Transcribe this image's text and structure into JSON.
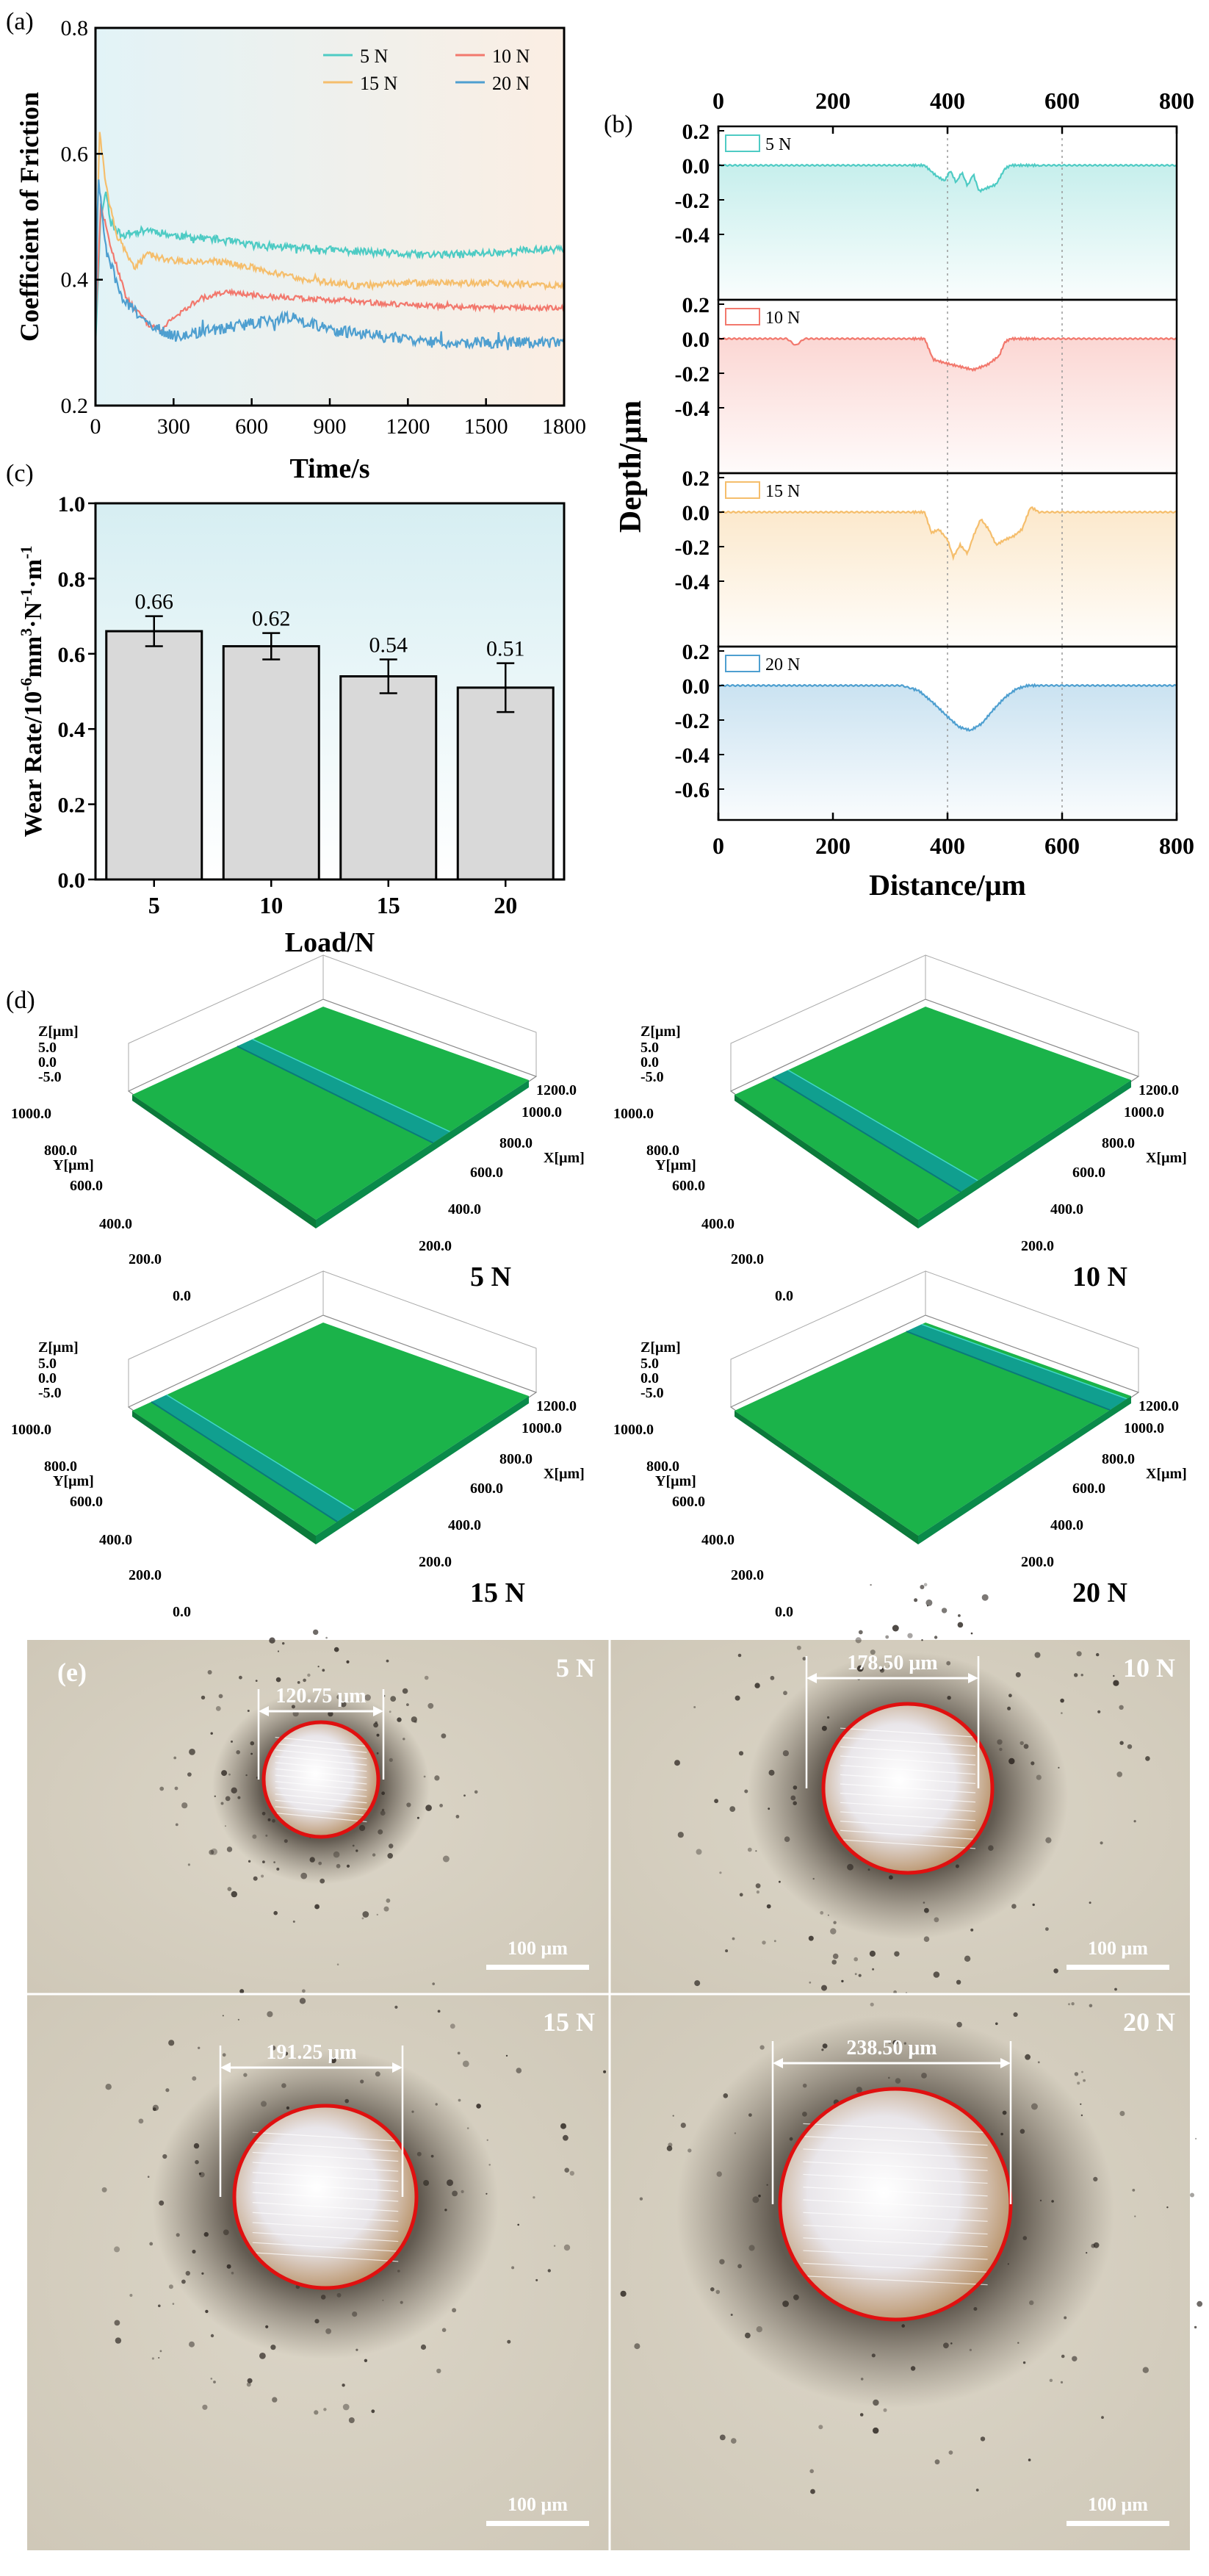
{
  "colors": {
    "n5": "#4ecbc4",
    "n10": "#f2786d",
    "n15": "#f5be6c",
    "n20": "#4e9fd0",
    "bar": "#d9d9d9",
    "circle": "#e01010",
    "bgA_left": "#e2f3f7",
    "bgA_right": "#fbeee3",
    "bgC_top": "#d6eef2",
    "surface": "#1bb34a",
    "groove": "#0e9b9b",
    "micro_bg": "#d8d2c4"
  },
  "chart_data": [
    {
      "id": "a",
      "panel_label": "(a)",
      "type": "line",
      "title": "",
      "xlabel": "Time/s",
      "ylabel": "Coefficient of Friction",
      "xlim": [
        0,
        1800
      ],
      "ylim": [
        0.2,
        0.8
      ],
      "xticks": [
        0,
        300,
        600,
        900,
        1200,
        1500,
        1800
      ],
      "yticks": [
        0.2,
        0.4,
        0.6,
        0.8
      ],
      "ytick_labels": [
        "0.2",
        "0.4",
        "0.6",
        "0.8"
      ],
      "legend": "top-right, two columns",
      "series": [
        {
          "name": "5 N",
          "color_key": "n5",
          "noise": 0.006,
          "points": [
            [
              0,
              0.3
            ],
            [
              20,
              0.5
            ],
            [
              40,
              0.54
            ],
            [
              60,
              0.49
            ],
            [
              100,
              0.47
            ],
            [
              200,
              0.48
            ],
            [
              300,
              0.47
            ],
            [
              450,
              0.465
            ],
            [
              600,
              0.455
            ],
            [
              800,
              0.45
            ],
            [
              1000,
              0.445
            ],
            [
              1200,
              0.44
            ],
            [
              1400,
              0.44
            ],
            [
              1600,
              0.445
            ],
            [
              1800,
              0.45
            ]
          ]
        },
        {
          "name": "10 N",
          "color_key": "n10",
          "noise": 0.004,
          "points": [
            [
              0,
              0.32
            ],
            [
              20,
              0.52
            ],
            [
              60,
              0.45
            ],
            [
              120,
              0.37
            ],
            [
              200,
              0.33
            ],
            [
              250,
              0.32
            ],
            [
              300,
              0.34
            ],
            [
              400,
              0.37
            ],
            [
              500,
              0.38
            ],
            [
              600,
              0.375
            ],
            [
              800,
              0.37
            ],
            [
              1000,
              0.365
            ],
            [
              1200,
              0.36
            ],
            [
              1500,
              0.355
            ],
            [
              1800,
              0.355
            ]
          ]
        },
        {
          "name": "15 N",
          "color_key": "n15",
          "noise": 0.005,
          "points": [
            [
              0,
              0.33
            ],
            [
              15,
              0.64
            ],
            [
              40,
              0.55
            ],
            [
              80,
              0.47
            ],
            [
              150,
              0.42
            ],
            [
              200,
              0.44
            ],
            [
              300,
              0.43
            ],
            [
              450,
              0.43
            ],
            [
              600,
              0.42
            ],
            [
              800,
              0.4
            ],
            [
              1000,
              0.39
            ],
            [
              1200,
              0.395
            ],
            [
              1500,
              0.395
            ],
            [
              1800,
              0.39
            ]
          ]
        },
        {
          "name": "20 N",
          "color_key": "n20",
          "noise": 0.009,
          "points": [
            [
              0,
              0.3
            ],
            [
              10,
              0.56
            ],
            [
              40,
              0.45
            ],
            [
              100,
              0.37
            ],
            [
              200,
              0.33
            ],
            [
              300,
              0.31
            ],
            [
              450,
              0.32
            ],
            [
              600,
              0.33
            ],
            [
              750,
              0.34
            ],
            [
              900,
              0.32
            ],
            [
              1100,
              0.31
            ],
            [
              1300,
              0.3
            ],
            [
              1500,
              0.3
            ],
            [
              1800,
              0.3
            ]
          ]
        }
      ]
    },
    {
      "id": "b",
      "panel_label": "(b)",
      "type": "line",
      "title": "",
      "xlabel": "Distance/μm",
      "ylabel": "Depth/μm",
      "xlim": [
        0,
        800
      ],
      "xticks": [
        0,
        200,
        400,
        600,
        800
      ],
      "ylim": [
        -0.6,
        0.2
      ],
      "yticks_per_panel": [
        "0.2",
        "0.0",
        "-0.2",
        "-0.4"
      ],
      "yticks_bottom": [
        "0.2",
        "0.0",
        "-0.2",
        "-0.4",
        "-0.6"
      ],
      "series": [
        {
          "name": "5 N",
          "color_key": "n5",
          "points": [
            [
              0,
              0.0
            ],
            [
              360,
              0.0
            ],
            [
              380,
              -0.06
            ],
            [
              395,
              -0.09
            ],
            [
              405,
              -0.03
            ],
            [
              415,
              -0.1
            ],
            [
              425,
              -0.04
            ],
            [
              435,
              -0.12
            ],
            [
              445,
              -0.05
            ],
            [
              455,
              -0.15
            ],
            [
              470,
              -0.13
            ],
            [
              485,
              -0.11
            ],
            [
              500,
              -0.02
            ],
            [
              510,
              0.0
            ],
            [
              800,
              0.0
            ]
          ]
        },
        {
          "name": "10 N",
          "color_key": "n10",
          "points": [
            [
              0,
              0.0
            ],
            [
              120,
              0.0
            ],
            [
              135,
              -0.04
            ],
            [
              150,
              0.0
            ],
            [
              360,
              0.0
            ],
            [
              375,
              -0.12
            ],
            [
              395,
              -0.14
            ],
            [
              420,
              -0.16
            ],
            [
              445,
              -0.18
            ],
            [
              470,
              -0.15
            ],
            [
              490,
              -0.1
            ],
            [
              500,
              -0.02
            ],
            [
              510,
              0.0
            ],
            [
              800,
              0.0
            ]
          ]
        },
        {
          "name": "15 N",
          "color_key": "n15",
          "points": [
            [
              0,
              0.0
            ],
            [
              360,
              0.0
            ],
            [
              372,
              -0.12
            ],
            [
              385,
              -0.1
            ],
            [
              400,
              -0.16
            ],
            [
              410,
              -0.26
            ],
            [
              422,
              -0.19
            ],
            [
              435,
              -0.24
            ],
            [
              445,
              -0.14
            ],
            [
              458,
              -0.04
            ],
            [
              472,
              -0.1
            ],
            [
              485,
              -0.19
            ],
            [
              500,
              -0.16
            ],
            [
              515,
              -0.14
            ],
            [
              530,
              -0.1
            ],
            [
              545,
              0.03
            ],
            [
              560,
              0.0
            ],
            [
              800,
              0.0
            ]
          ]
        },
        {
          "name": "20 N",
          "color_key": "n20",
          "points": [
            [
              0,
              0.0
            ],
            [
              320,
              0.0
            ],
            [
              350,
              -0.03
            ],
            [
              375,
              -0.1
            ],
            [
              400,
              -0.18
            ],
            [
              420,
              -0.24
            ],
            [
              440,
              -0.26
            ],
            [
              460,
              -0.22
            ],
            [
              480,
              -0.14
            ],
            [
              500,
              -0.07
            ],
            [
              520,
              -0.02
            ],
            [
              540,
              0.0
            ],
            [
              800,
              0.0
            ]
          ]
        }
      ]
    },
    {
      "id": "c",
      "panel_label": "(c)",
      "type": "bar",
      "title": "",
      "xlabel": "Load/N",
      "ylabel_main": "Wear Rate/10",
      "ylabel_sup1": "-6",
      "ylabel_mid": "mm",
      "ylabel_sup2": "3",
      "ylabel_mid2": "·N",
      "ylabel_sup3": "-1",
      "ylabel_mid3": "·m",
      "ylabel_sup4": "-1",
      "categories": [
        "5",
        "10",
        "15",
        "20"
      ],
      "values": [
        0.66,
        0.62,
        0.54,
        0.51
      ],
      "value_labels": [
        "0.66",
        "0.62",
        "0.54",
        "0.51"
      ],
      "errors": [
        0.04,
        0.035,
        0.045,
        0.065
      ],
      "ylim": [
        0.0,
        1.0
      ],
      "yticks": [
        "0.0",
        "0.2",
        "0.4",
        "0.6",
        "0.8",
        "1.0"
      ]
    }
  ],
  "panel_d": {
    "label": "(d)",
    "axis_labels": {
      "z": "Z[μm]",
      "y": "Y[μm]",
      "x": "X[μm]"
    },
    "z_ticks": [
      "5.0",
      "0.0",
      "-5.0"
    ],
    "y_ticks": [
      "1000.0",
      "800.0",
      "600.0",
      "400.0",
      "200.0",
      "0.0"
    ],
    "x_ticks": [
      "1200.0",
      "1000.0",
      "800.0",
      "600.0",
      "400.0",
      "200.0"
    ],
    "tiles": [
      {
        "load": "5 N",
        "groove": 0.55
      },
      {
        "load": "10 N",
        "groove": 0.2
      },
      {
        "load": "15 N",
        "groove": 0.1
      },
      {
        "load": "20 N",
        "groove": 0.9
      }
    ]
  },
  "panel_e": {
    "label": "(e)",
    "scale_bar": "100 μm",
    "tiles": [
      {
        "load": "5 N",
        "measure": "120.75 μm"
      },
      {
        "load": "10 N",
        "measure": "178.50 μm"
      },
      {
        "load": "15 N",
        "measure": "191.25 μm"
      },
      {
        "load": "20 N",
        "measure": "238.50 μm"
      }
    ]
  }
}
